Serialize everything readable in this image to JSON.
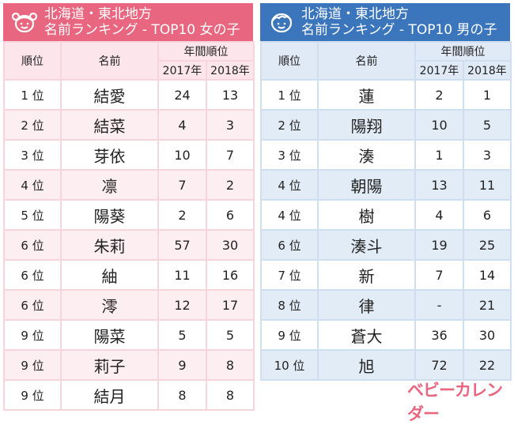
{
  "colors": {
    "girls": "#e8667f",
    "boys": "#3b75bb"
  },
  "girls": {
    "title1": "北海道・東北地方",
    "title2": "名前ランキング - TOP10 女の子",
    "icon": "girl-face-icon",
    "headers": {
      "rank": "順位",
      "name": "名前",
      "annual": "年間順位",
      "y2017": "2017年",
      "y2018": "2018年"
    },
    "rows": [
      {
        "rank": "1 位",
        "name": "結愛",
        "y2017": "24",
        "y2018": "13"
      },
      {
        "rank": "2 位",
        "name": "結菜",
        "y2017": "4",
        "y2018": "3"
      },
      {
        "rank": "3 位",
        "name": "芽依",
        "y2017": "10",
        "y2018": "7"
      },
      {
        "rank": "4 位",
        "name": "凛",
        "y2017": "7",
        "y2018": "2"
      },
      {
        "rank": "5 位",
        "name": "陽葵",
        "y2017": "2",
        "y2018": "6"
      },
      {
        "rank": "6 位",
        "name": "朱莉",
        "y2017": "57",
        "y2018": "30"
      },
      {
        "rank": "6 位",
        "name": "紬",
        "y2017": "11",
        "y2018": "16"
      },
      {
        "rank": "6 位",
        "name": "澪",
        "y2017": "12",
        "y2018": "17"
      },
      {
        "rank": "9 位",
        "name": "陽菜",
        "y2017": "5",
        "y2018": "5"
      },
      {
        "rank": "9 位",
        "name": "莉子",
        "y2017": "9",
        "y2018": "8"
      },
      {
        "rank": "9 位",
        "name": "結月",
        "y2017": "8",
        "y2018": "8"
      }
    ]
  },
  "boys": {
    "title1": "北海道・東北地方",
    "title2": "名前ランキング - TOP10 男の子",
    "icon": "boy-face-icon",
    "headers": {
      "rank": "順位",
      "name": "名前",
      "annual": "年間順位",
      "y2017": "2017年",
      "y2018": "2018年"
    },
    "rows": [
      {
        "rank": "1 位",
        "name": "蓮",
        "y2017": "2",
        "y2018": "1"
      },
      {
        "rank": "2 位",
        "name": "陽翔",
        "y2017": "10",
        "y2018": "5"
      },
      {
        "rank": "3 位",
        "name": "湊",
        "y2017": "1",
        "y2018": "3"
      },
      {
        "rank": "4 位",
        "name": "朝陽",
        "y2017": "13",
        "y2018": "11"
      },
      {
        "rank": "4 位",
        "name": "樹",
        "y2017": "4",
        "y2018": "6"
      },
      {
        "rank": "6 位",
        "name": "湊斗",
        "y2017": "19",
        "y2018": "25"
      },
      {
        "rank": "7 位",
        "name": "新",
        "y2017": "7",
        "y2018": "14"
      },
      {
        "rank": "8 位",
        "name": "律",
        "y2017": "-",
        "y2018": "21"
      },
      {
        "rank": "9 位",
        "name": "蒼大",
        "y2017": "36",
        "y2018": "30"
      },
      {
        "rank": "10 位",
        "name": "旭",
        "y2017": "72",
        "y2018": "22"
      }
    ]
  },
  "logo": "ベビーカレンダー"
}
